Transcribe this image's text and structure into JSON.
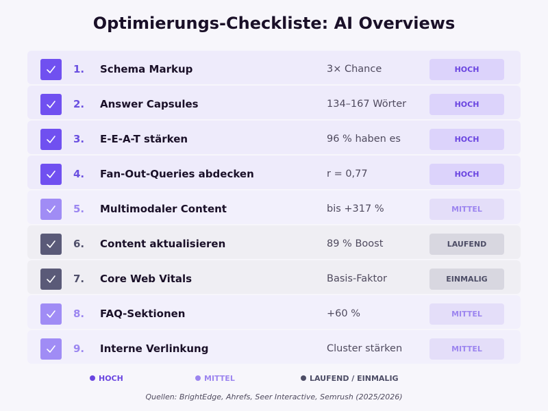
{
  "header": {
    "title": "Optimierungs-Checkliste: AI Overviews"
  },
  "items": [
    {
      "number": "1.",
      "label": "Schema Markup",
      "metric": "3× Chance",
      "priority": "HOCH"
    },
    {
      "number": "2.",
      "label": "Answer Capsules",
      "metric": "134–167 Wörter",
      "priority": "HOCH"
    },
    {
      "number": "3.",
      "label": "E-E-A-T stärken",
      "metric": "96 % haben es",
      "priority": "HOCH"
    },
    {
      "number": "4.",
      "label": "Fan-Out-Queries abdecken",
      "metric": "r = 0,77",
      "priority": "HOCH"
    },
    {
      "number": "5.",
      "label": "Multimodaler Content",
      "metric": "bis +317 %",
      "priority": "MITTEL"
    },
    {
      "number": "6.",
      "label": "Content aktualisieren",
      "metric": "89 % Boost",
      "priority": "LAUFEND"
    },
    {
      "number": "7.",
      "label": "Core Web Vitals",
      "metric": "Basis-Faktor",
      "priority": "EINMALIG"
    },
    {
      "number": "8.",
      "label": "FAQ-Sektionen",
      "metric": "+60 %",
      "priority": "MITTEL"
    },
    {
      "number": "9.",
      "label": "Interne Verlinkung",
      "metric": "Cluster stärken",
      "priority": "MITTEL"
    }
  ],
  "legend": [
    "HOCH",
    "MITTEL",
    "LAUFEND / EINMALIG"
  ],
  "source": "Quellen: BrightEdge, Ahrefs, Seer Interactive, Semrush (2025/2026)"
}
